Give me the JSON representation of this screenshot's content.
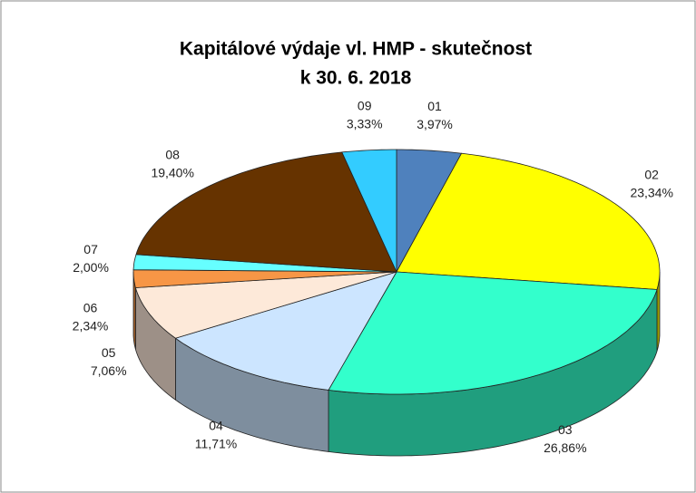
{
  "chart_data": {
    "type": "pie3d",
    "title": "Kapitálové výdaje vl. HMP - skutečnost",
    "subtitle": "k 30. 6. 2018",
    "categories": [
      "01",
      "02",
      "03",
      "04",
      "05",
      "06",
      "07",
      "08",
      "09"
    ],
    "values": [
      3.97,
      23.34,
      26.86,
      11.71,
      7.06,
      2.34,
      2.0,
      19.4,
      3.33
    ],
    "value_labels": [
      "3,97%",
      "23,34%",
      "26,86%",
      "11,71%",
      "7,06%",
      "2,34%",
      "2,00%",
      "19,40%",
      "3,33%"
    ],
    "colors": [
      "#4f81bd",
      "#ffff00",
      "#33ffcc",
      "#cce5ff",
      "#fde9d9",
      "#f79646",
      "#66ffff",
      "#663300",
      "#33ccff"
    ]
  }
}
